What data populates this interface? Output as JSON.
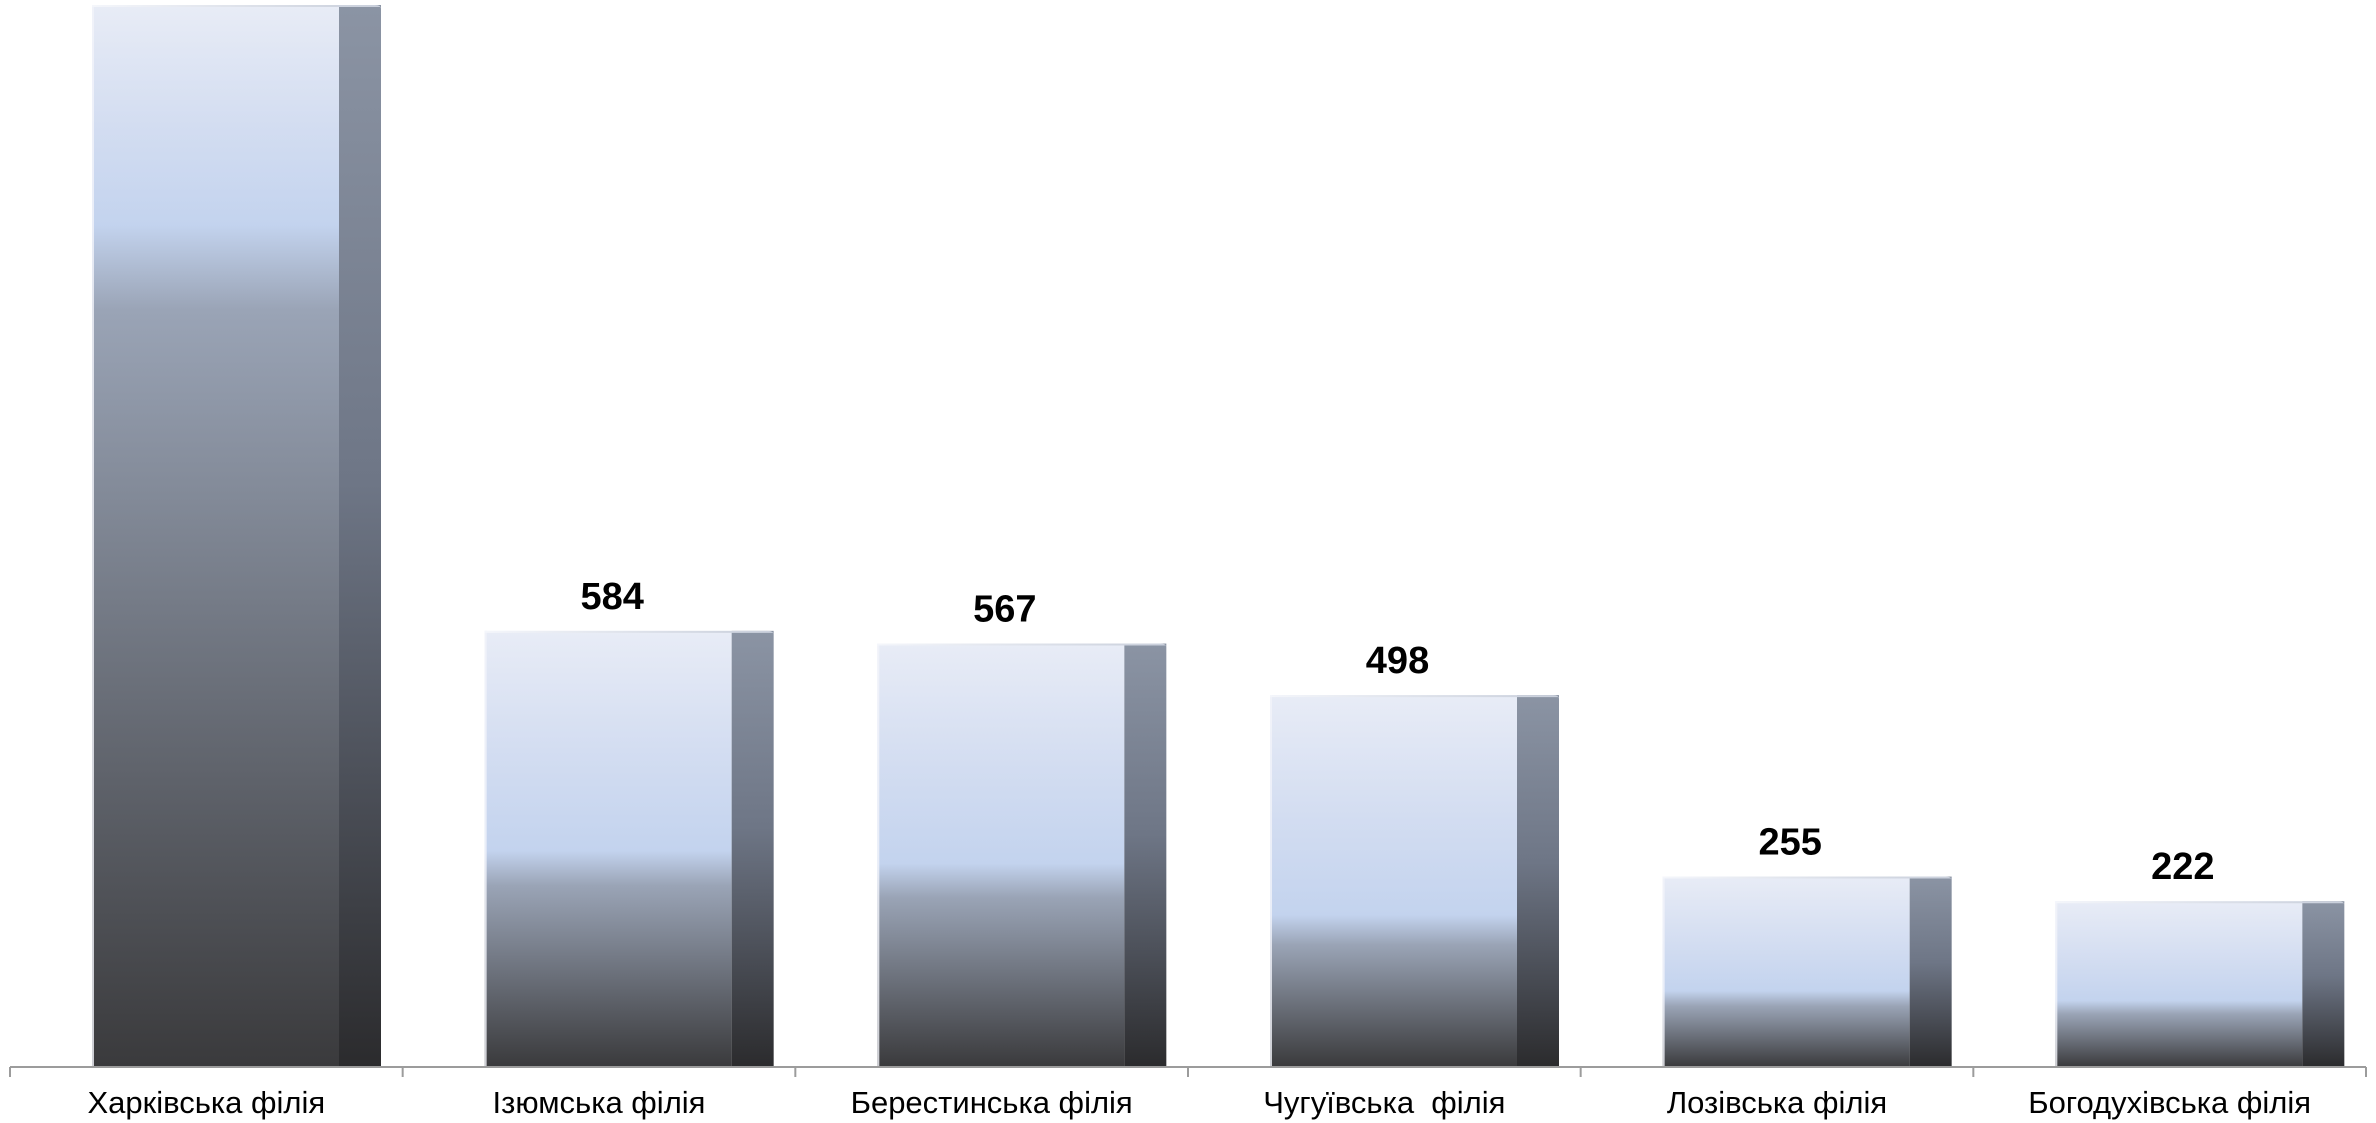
{
  "chart_data": {
    "type": "bar",
    "title": "",
    "xlabel": "",
    "ylabel": "",
    "categories": [
      "Харківська філія",
      "Ізюмська філія",
      "Берестинська філія",
      "Чугуївська  філія",
      "Лозівська філія",
      "Богодухівська філія"
    ],
    "values": [
      1422,
      584,
      567,
      498,
      255,
      222
    ],
    "data_labels": [
      "",
      "584",
      "567",
      "498",
      "255",
      "222"
    ],
    "ylim": [
      0,
      1422
    ],
    "grid": false,
    "legend": "none",
    "colors": {
      "bar_top": "#e6eaf5",
      "bar_mid": "#c5d5ef",
      "bar_bottom": "#3d3d3f",
      "side_top": "#8a93a3",
      "side_bottom": "#2d2d2f",
      "axis": "#9c9c9c"
    }
  }
}
